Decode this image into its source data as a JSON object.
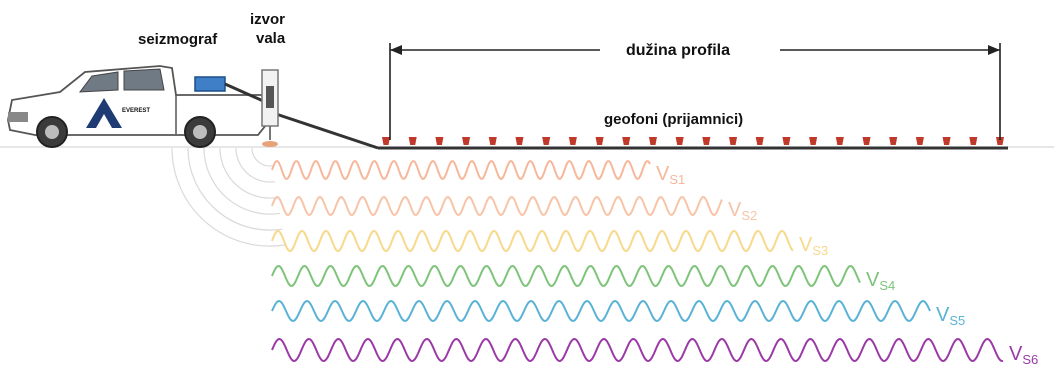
{
  "labels": {
    "seismograph": "seizmograf",
    "source_line1": "izvor",
    "source_line2": "vala",
    "profile_length": "dužina profila",
    "geophones": "geofoni (prijamnici)",
    "truck_logo": "EVEREST"
  },
  "waves": [
    {
      "label": "V",
      "sub": "S1",
      "color": "#f6b79a"
    },
    {
      "label": "V",
      "sub": "S2",
      "color": "#f7c4a8"
    },
    {
      "label": "V",
      "sub": "S3",
      "color": "#f7d98c"
    },
    {
      "label": "V",
      "sub": "S4",
      "color": "#7dc37a"
    },
    {
      "label": "V",
      "sub": "S5",
      "color": "#5ab3d6"
    },
    {
      "label": "V",
      "sub": "S6",
      "color": "#9b3aa6"
    }
  ],
  "colors": {
    "ground_line": "#cfcfcf",
    "cable": "#333333",
    "geophone": "#c0392b",
    "ripple": "#d9d9d9",
    "logo_blue": "#1f3b73"
  },
  "geophone_count": 24
}
